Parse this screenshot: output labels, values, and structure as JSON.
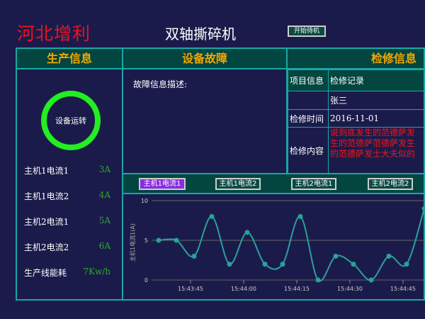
{
  "header": {
    "brand": "河北增利",
    "title": "双轴撕碎机",
    "start_button": "开始待机"
  },
  "sections": {
    "production": "生产信息",
    "fault": "设备故障",
    "maintenance": "检修信息"
  },
  "production": {
    "status": "设备运转",
    "status_color": "#22ee22",
    "items": [
      {
        "label": "主机1电流1",
        "value": "3A"
      },
      {
        "label": "主机1电流2",
        "value": "4A"
      },
      {
        "label": "主机2电流1",
        "value": "5A"
      },
      {
        "label": "主机2电流2",
        "value": "6A"
      },
      {
        "label": "生产线能耗",
        "value": "7Kw/h"
      }
    ]
  },
  "fault": {
    "description_label": "故障信息描述:"
  },
  "maintenance": {
    "col0": [
      "项目信息",
      "",
      "检修时间",
      "检修内容"
    ],
    "records": [
      {
        "header": "检修记录",
        "person": "张三",
        "time": "2016-11-01",
        "content": "说到底发生的范德萨发生的范德萨范德萨发生的范德萨发士大夫似的"
      },
      {
        "header": "检修记录",
        "person": "张三",
        "time": "2016-11-01",
        "content": "说到底发生的范德萨发生的范德萨范德萨发生的范德萨发士大夫似的"
      }
    ]
  },
  "tabs": [
    {
      "label": "主机1电流1",
      "selected": true
    },
    {
      "label": "主机1电流2"
    },
    {
      "label": "主机2电流1"
    },
    {
      "label": "主机2电流2"
    }
  ],
  "chart_data": {
    "type": "line",
    "ylabel": "主机1电流1(A)",
    "ylim": [
      0,
      10
    ],
    "yticks": [
      "0",
      "5",
      "10"
    ],
    "xticks": [
      "15:43:45",
      "15:44:00",
      "15:44:15",
      "15:44:30",
      "15:44:45"
    ],
    "x": [
      "15:43:36",
      "15:43:41",
      "15:43:46",
      "15:43:51",
      "15:43:56",
      "15:44:01",
      "15:44:06",
      "15:44:11",
      "15:44:16",
      "15:44:21",
      "15:44:26",
      "15:44:31",
      "15:44:36",
      "15:44:41",
      "15:44:46",
      "15:44:51"
    ],
    "values": [
      5,
      5,
      3,
      8,
      2,
      6,
      2,
      2,
      8,
      0,
      3,
      2,
      0,
      3,
      2,
      9
    ],
    "color": "#2aa198",
    "grid": true
  }
}
